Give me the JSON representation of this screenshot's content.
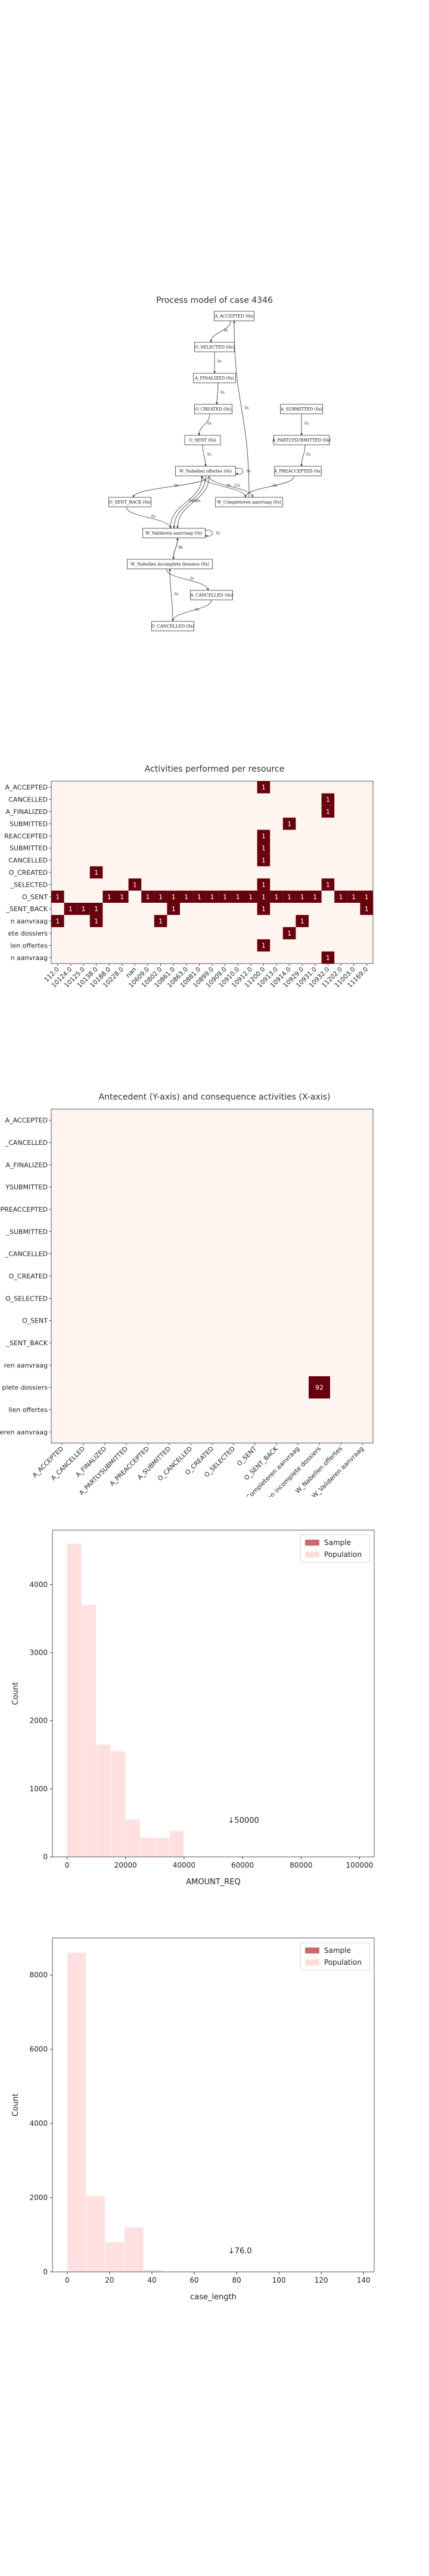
{
  "process_model": {
    "title": "Process model of case 4346",
    "nodes": [
      {
        "id": "a_accepted",
        "label": "A_ACCEPTED (0s)"
      },
      {
        "id": "o_selected",
        "label": "O_SELECTED (0s)"
      },
      {
        "id": "a_finalized",
        "label": "A_FINALIZED (0s)"
      },
      {
        "id": "o_created",
        "label": "O_CREATED (0s)"
      },
      {
        "id": "o_sent",
        "label": "O_SENT (0s)"
      },
      {
        "id": "w_nabellen",
        "label": "W_Nabellen offertes (0s)"
      },
      {
        "id": "o_sent_back",
        "label": "O_SENT_BACK (0s)"
      },
      {
        "id": "w_valideren",
        "label": "W_Valideren aanvraag (0s)"
      },
      {
        "id": "w_nabellen_incompleet",
        "label": "W_Nabellen incomplete dossiers (0s)"
      },
      {
        "id": "a_cancelled",
        "label": "A_CANCELLED (0s)"
      },
      {
        "id": "o_cancelled",
        "label": "O_CANCELLED (0s)"
      },
      {
        "id": "a_submitted",
        "label": "A_SUBMITTED (0s)"
      },
      {
        "id": "a_partlysubmitted",
        "label": "A_PARTLYSUBMITTED (0s)"
      },
      {
        "id": "a_preaccepted",
        "label": "A_PREACCEPTED (0s)"
      },
      {
        "id": "w_completeren",
        "label": "W_Completeren aanvraag (0s)"
      }
    ],
    "edge_labels": [
      "0s",
      "0s",
      "0s",
      "0s",
      "0s",
      "0s",
      "0s",
      "0s",
      "0s",
      "0s",
      "0s",
      "22s",
      "9s",
      "0s",
      "0s",
      "0s",
      "0s",
      "0s",
      "0s",
      "0s",
      "0s",
      "0s",
      "0s"
    ]
  },
  "chart_data": [
    {
      "type": "heatmap",
      "title": "Activities performed per resource",
      "rows": [
        "A_ACCEPTED",
        "A_CANCELLED",
        "A_FINALIZED",
        "A_PARTLYSUBMITTED",
        "A_PREACCEPTED",
        "A_SUBMITTED",
        "O_CANCELLED",
        "O_CREATED",
        "O_SELECTED",
        "O_SENT",
        "O_SENT_BACK",
        "W_Completeren aanvraag",
        "W_Nabellen incomplete dossiers",
        "W_Nabellen offertes",
        "W_Valideren aanvraag"
      ],
      "row_labels_visible": [
        "A_ACCEPTED",
        "CANCELLED",
        "A_FINALIZED",
        "SUBMITTED",
        "REACCEPTED",
        "SUBMITTED",
        "CANCELLED",
        "O_CREATED",
        "_SELECTED",
        "O_SENT",
        "_SENT_BACK",
        "n aanvraag",
        "ete dossiers",
        "len offertes",
        "n aanvraag"
      ],
      "columns": [
        "112.0",
        "10124.0",
        "10125.0",
        "10138.0",
        "10188.0",
        "10228.0",
        "10629.0",
        "10609.0",
        "10802.0",
        "10861.0",
        "10863.0",
        "10881.0",
        "10899.0",
        "10909.0",
        "10910.0",
        "10912.0",
        "10913.0",
        "10914.0",
        "10929.0",
        "10931.0",
        "10932.0",
        "10935.0",
        "10939.0",
        "11000.0",
        "11169.0"
      ],
      "column_labels_visible": [
        "112.0",
        "10124.0",
        "10125.0",
        "10138.0",
        "10188.0",
        "10228.0",
        "nan",
        "10609.0",
        "10802.0",
        "10861.0",
        "10863.0",
        "10881.0",
        "10899.0",
        "10909.0",
        "10910.0",
        "10912.0",
        "11200.0",
        "10913.0",
        "10914.0",
        "10929.0",
        "10931.0",
        "10932.0",
        "11202.0",
        "11003.0",
        "11169.0"
      ],
      "cells": [
        {
          "row": 0,
          "col": 16,
          "value": 1
        },
        {
          "row": 1,
          "col": 21,
          "value": 1
        },
        {
          "row": 2,
          "col": 21,
          "value": 1
        },
        {
          "row": 3,
          "col": 18,
          "value": 1
        },
        {
          "row": 4,
          "col": 16,
          "value": 1
        },
        {
          "row": 5,
          "col": 16,
          "value": 1
        },
        {
          "row": 6,
          "col": 16,
          "value": 1
        },
        {
          "row": 7,
          "col": 3,
          "value": 1
        },
        {
          "row": 8,
          "col": 6,
          "value": 1
        },
        {
          "row": 8,
          "col": 16,
          "value": 1
        },
        {
          "row": 8,
          "col": 21,
          "value": 1
        },
        {
          "row": 9,
          "col": 0,
          "value": 1
        },
        {
          "row": 9,
          "col": 4,
          "value": 1
        },
        {
          "row": 9,
          "col": 5,
          "value": 1
        },
        {
          "row": 9,
          "col": 7,
          "value": 1
        },
        {
          "row": 9,
          "col": 8,
          "value": 1
        },
        {
          "row": 9,
          "col": 9,
          "value": 1
        },
        {
          "row": 9,
          "col": 10,
          "value": 1
        },
        {
          "row": 9,
          "col": 11,
          "value": 1
        },
        {
          "row": 9,
          "col": 12,
          "value": 1
        },
        {
          "row": 9,
          "col": 13,
          "value": 1
        },
        {
          "row": 9,
          "col": 14,
          "value": 1
        },
        {
          "row": 9,
          "col": 15,
          "value": 1
        },
        {
          "row": 9,
          "col": 16,
          "value": 1
        },
        {
          "row": 9,
          "col": 17,
          "value": 1
        },
        {
          "row": 9,
          "col": 18,
          "value": 1
        },
        {
          "row": 9,
          "col": 19,
          "value": 1
        },
        {
          "row": 9,
          "col": 20,
          "value": 1
        },
        {
          "row": 9,
          "col": 22,
          "value": 1
        },
        {
          "row": 9,
          "col": 23,
          "value": 1
        },
        {
          "row": 9,
          "col": 24,
          "value": 1
        },
        {
          "row": 10,
          "col": 1,
          "value": 1
        },
        {
          "row": 10,
          "col": 2,
          "value": 1
        },
        {
          "row": 10,
          "col": 3,
          "value": 1
        },
        {
          "row": 10,
          "col": 9,
          "value": 1
        },
        {
          "row": 10,
          "col": 16,
          "value": 1
        },
        {
          "row": 10,
          "col": 24,
          "value": 1
        },
        {
          "row": 11,
          "col": 0,
          "value": 1
        },
        {
          "row": 11,
          "col": 3,
          "value": 1
        },
        {
          "row": 11,
          "col": 8,
          "value": 1
        },
        {
          "row": 11,
          "col": 19,
          "value": 1
        },
        {
          "row": 12,
          "col": 18,
          "value": 1
        },
        {
          "row": 13,
          "col": 16,
          "value": 1
        },
        {
          "row": 14,
          "col": 21,
          "value": 1
        }
      ],
      "color_low": "#fff5f0",
      "color_high": "#67000d"
    },
    {
      "type": "heatmap",
      "title": "Antecedent (Y-axis) and consequence activities (X-axis)",
      "rows": [
        "A_ACCEPTED",
        "A_CANCELLED",
        "A_FINALIZED",
        "A_PARTLYSUBMITTED",
        "A_PREACCEPTED",
        "A_SUBMITTED",
        "O_CANCELLED",
        "O_CREATED",
        "O_SELECTED",
        "O_SENT",
        "O_SENT_BACK",
        "W_Completeren aanvraag",
        "W_Nabellen incomplete dossiers",
        "W_Nabellen offertes",
        "W_Valideren aanvraag"
      ],
      "row_labels_visible": [
        "A_ACCEPTED",
        "_CANCELLED",
        "A_FINALIZED",
        "YSUBMITTED",
        "PREACCEPTED",
        "_SUBMITTED",
        "_CANCELLED",
        "O_CREATED",
        "O_SELECTED",
        "O_SENT",
        "_SENT_BACK",
        "ren aanvraag",
        "plete dossiers",
        "llen offertes",
        "eren aanvraag"
      ],
      "columns": [
        "A_ACCEPTED",
        "A_CANCELLED",
        "A_FINALIZED",
        "A_PARTLYSUBMITTED",
        "A_PREACCEPTED",
        "A_SUBMITTED",
        "O_CANCELLED",
        "O_CREATED",
        "O_SELECTED",
        "O_SENT",
        "O_SENT_BACK",
        "W_Completeren aanvraag",
        "W_Nabellen incomplete dossiers",
        "W_Nabellen offertes",
        "W_Valideren aanvraag"
      ],
      "cells": [
        {
          "row": 12,
          "col": 12,
          "value": 92
        }
      ],
      "color_low": "#fff5f0",
      "color_high": "#67000d"
    },
    {
      "type": "histogram",
      "xlabel": "AMOUNT_REQ",
      "ylabel": "Count",
      "xlim": [
        -5000,
        105000
      ],
      "ylim": [
        0,
        4800
      ],
      "x_ticks": [
        0,
        20000,
        40000,
        60000,
        80000,
        100000
      ],
      "y_ticks": [
        0,
        1000,
        2000,
        3000,
        4000
      ],
      "bin_edges": [
        0,
        5000,
        10000,
        15000,
        20000,
        25000,
        30000,
        35000,
        40000,
        45000,
        50000,
        55000
      ],
      "series": [
        {
          "name": "Sample",
          "color": "#c44e52",
          "values": [
            0,
            0,
            0,
            0,
            0,
            0,
            0,
            0,
            0,
            0,
            0
          ]
        },
        {
          "name": "Population",
          "color": "#ffd6d6",
          "values": [
            4600,
            3700,
            1650,
            1550,
            550,
            280,
            280,
            380,
            0,
            0,
            0
          ]
        }
      ],
      "annotation": "↓50000",
      "annotation_x": 55000,
      "annotation_y": 500
    },
    {
      "type": "histogram",
      "xlabel": "case_length",
      "ylabel": "Count",
      "xlim": [
        -7,
        145
      ],
      "ylim": [
        0,
        9000
      ],
      "x_ticks": [
        0,
        20,
        40,
        60,
        80,
        100,
        120,
        140
      ],
      "y_ticks": [
        0,
        2000,
        4000,
        6000,
        8000
      ],
      "bin_edges": [
        0,
        9,
        18,
        27,
        36,
        45,
        54
      ],
      "series": [
        {
          "name": "Sample",
          "color": "#c44e52",
          "values": [
            0,
            0,
            0,
            0,
            0,
            0
          ]
        },
        {
          "name": "Population",
          "color": "#ffd6d6",
          "values": [
            8600,
            2050,
            800,
            1200,
            50,
            0
          ]
        }
      ],
      "annotation": "↓76.0",
      "annotation_x": 76,
      "annotation_y": 500
    }
  ]
}
